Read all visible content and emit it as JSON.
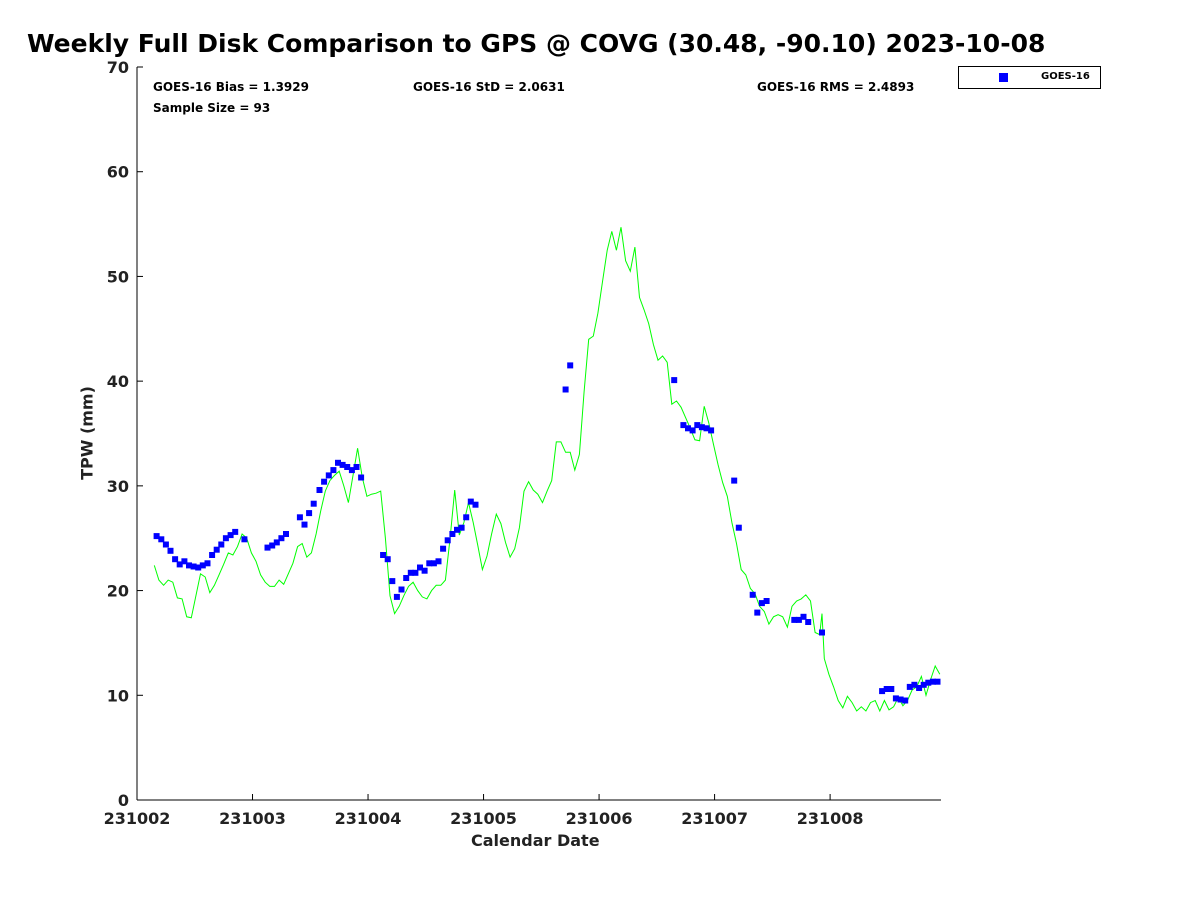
{
  "chart_data": {
    "type": "scatter",
    "title": "Weekly Full Disk Comparison to GPS @ COVG (30.48, -90.10) 2023-10-08",
    "xlabel": "Calendar Date",
    "ylabel": "TPW (mm)",
    "ylim": [
      0,
      70
    ],
    "yticks": [
      0,
      10,
      20,
      30,
      40,
      50,
      60,
      70
    ],
    "xlim": [
      0,
      6.96
    ],
    "xticks": [
      0,
      1,
      2,
      3,
      4,
      5,
      6
    ],
    "xtick_labels": [
      "231002",
      "231003",
      "231004",
      "231005",
      "231006",
      "231007",
      "231008"
    ],
    "stats": {
      "bias": "GOES-16 Bias = 1.3929",
      "std": "GOES-16 StD = 2.0631",
      "rms": "GOES-16 RMS = 2.4893",
      "sample": "Sample Size = 93"
    },
    "legend": {
      "label": "GOES-16",
      "position": "top-right",
      "color": "#0000ff"
    },
    "series": [
      {
        "name": "GOES-16",
        "kind": "scatter",
        "color": "#0000ff",
        "points": [
          [
            0.17,
            25.2
          ],
          [
            0.21,
            24.9
          ],
          [
            0.25,
            24.4
          ],
          [
            0.29,
            23.8
          ],
          [
            0.33,
            23.0
          ],
          [
            0.37,
            22.5
          ],
          [
            0.41,
            22.8
          ],
          [
            0.45,
            22.4
          ],
          [
            0.49,
            22.3
          ],
          [
            0.53,
            22.2
          ],
          [
            0.57,
            22.4
          ],
          [
            0.61,
            22.6
          ],
          [
            0.65,
            23.4
          ],
          [
            0.69,
            23.9
          ],
          [
            0.73,
            24.4
          ],
          [
            0.77,
            25.0
          ],
          [
            0.81,
            25.3
          ],
          [
            0.85,
            25.6
          ],
          [
            0.93,
            24.9
          ],
          [
            1.13,
            24.1
          ],
          [
            1.17,
            24.3
          ],
          [
            1.21,
            24.6
          ],
          [
            1.25,
            25.0
          ],
          [
            1.29,
            25.4
          ],
          [
            1.41,
            27.0
          ],
          [
            1.45,
            26.3
          ],
          [
            1.49,
            27.4
          ],
          [
            1.53,
            28.3
          ],
          [
            1.58,
            29.6
          ],
          [
            1.62,
            30.4
          ],
          [
            1.66,
            31.0
          ],
          [
            1.7,
            31.5
          ],
          [
            1.74,
            32.2
          ],
          [
            1.78,
            32.0
          ],
          [
            1.82,
            31.8
          ],
          [
            1.86,
            31.5
          ],
          [
            1.9,
            31.8
          ],
          [
            1.94,
            30.8
          ],
          [
            2.13,
            23.4
          ],
          [
            2.17,
            23.0
          ],
          [
            2.21,
            20.9
          ],
          [
            2.25,
            19.4
          ],
          [
            2.29,
            20.1
          ],
          [
            2.33,
            21.2
          ],
          [
            2.37,
            21.7
          ],
          [
            2.41,
            21.7
          ],
          [
            2.45,
            22.2
          ],
          [
            2.49,
            21.9
          ],
          [
            2.53,
            22.6
          ],
          [
            2.57,
            22.6
          ],
          [
            2.61,
            22.8
          ],
          [
            2.65,
            24.0
          ],
          [
            2.69,
            24.8
          ],
          [
            2.73,
            25.4
          ],
          [
            2.77,
            25.8
          ],
          [
            2.81,
            26.0
          ],
          [
            2.85,
            27.0
          ],
          [
            2.89,
            28.5
          ],
          [
            2.93,
            28.2
          ],
          [
            3.71,
            39.2
          ],
          [
            3.75,
            41.5
          ],
          [
            4.65,
            40.1
          ],
          [
            4.73,
            35.8
          ],
          [
            4.77,
            35.5
          ],
          [
            4.81,
            35.3
          ],
          [
            4.85,
            35.8
          ],
          [
            4.89,
            35.6
          ],
          [
            4.93,
            35.5
          ],
          [
            4.97,
            35.3
          ],
          [
            5.17,
            30.5
          ],
          [
            5.21,
            26.0
          ],
          [
            5.33,
            19.6
          ],
          [
            5.37,
            17.9
          ],
          [
            5.41,
            18.8
          ],
          [
            5.45,
            19.0
          ],
          [
            5.69,
            17.2
          ],
          [
            5.73,
            17.2
          ],
          [
            5.77,
            17.5
          ],
          [
            5.81,
            17.0
          ],
          [
            5.93,
            16.0
          ],
          [
            6.45,
            10.4
          ],
          [
            6.49,
            10.6
          ],
          [
            6.53,
            10.6
          ],
          [
            6.57,
            9.7
          ],
          [
            6.61,
            9.6
          ],
          [
            6.65,
            9.5
          ],
          [
            6.69,
            10.8
          ],
          [
            6.73,
            11.0
          ],
          [
            6.77,
            10.7
          ],
          [
            6.81,
            11.0
          ],
          [
            6.85,
            11.2
          ],
          [
            6.89,
            11.3
          ],
          [
            6.93,
            11.3
          ]
        ]
      },
      {
        "name": "GPS",
        "kind": "line",
        "color": "#00ff00",
        "points": [
          [
            0.15,
            22.4
          ],
          [
            0.19,
            21.0
          ],
          [
            0.23,
            20.5
          ],
          [
            0.27,
            21.0
          ],
          [
            0.31,
            20.8
          ],
          [
            0.35,
            19.3
          ],
          [
            0.39,
            19.2
          ],
          [
            0.43,
            17.5
          ],
          [
            0.47,
            17.4
          ],
          [
            0.51,
            19.5
          ],
          [
            0.55,
            21.6
          ],
          [
            0.59,
            21.3
          ],
          [
            0.63,
            19.8
          ],
          [
            0.67,
            20.5
          ],
          [
            0.71,
            21.5
          ],
          [
            0.75,
            22.5
          ],
          [
            0.79,
            23.6
          ],
          [
            0.83,
            23.4
          ],
          [
            0.87,
            24.2
          ],
          [
            0.91,
            25.4
          ],
          [
            0.95,
            25.0
          ],
          [
            0.99,
            23.6
          ],
          [
            1.03,
            22.8
          ],
          [
            1.07,
            21.5
          ],
          [
            1.11,
            20.8
          ],
          [
            1.15,
            20.4
          ],
          [
            1.19,
            20.4
          ],
          [
            1.23,
            21.0
          ],
          [
            1.27,
            20.6
          ],
          [
            1.31,
            21.6
          ],
          [
            1.35,
            22.6
          ],
          [
            1.39,
            24.2
          ],
          [
            1.43,
            24.5
          ],
          [
            1.47,
            23.2
          ],
          [
            1.51,
            23.6
          ],
          [
            1.55,
            25.4
          ],
          [
            1.59,
            27.6
          ],
          [
            1.63,
            29.5
          ],
          [
            1.67,
            30.5
          ],
          [
            1.71,
            31.0
          ],
          [
            1.75,
            31.4
          ],
          [
            1.79,
            30.0
          ],
          [
            1.83,
            28.4
          ],
          [
            1.87,
            31.0
          ],
          [
            1.91,
            33.6
          ],
          [
            1.95,
            30.8
          ],
          [
            1.99,
            29.0
          ],
          [
            2.03,
            29.2
          ],
          [
            2.07,
            29.3
          ],
          [
            2.11,
            29.5
          ],
          [
            2.15,
            25.0
          ],
          [
            2.19,
            19.5
          ],
          [
            2.23,
            17.8
          ],
          [
            2.27,
            18.5
          ],
          [
            2.31,
            19.5
          ],
          [
            2.35,
            20.4
          ],
          [
            2.39,
            20.8
          ],
          [
            2.43,
            20.0
          ],
          [
            2.47,
            19.4
          ],
          [
            2.51,
            19.2
          ],
          [
            2.55,
            20.0
          ],
          [
            2.59,
            20.5
          ],
          [
            2.63,
            20.5
          ],
          [
            2.67,
            21.0
          ],
          [
            2.71,
            25.0
          ],
          [
            2.75,
            29.6
          ],
          [
            2.79,
            25.3
          ],
          [
            2.83,
            26.5
          ],
          [
            2.87,
            28.4
          ],
          [
            2.91,
            26.5
          ],
          [
            2.95,
            24.3
          ],
          [
            2.99,
            22.0
          ],
          [
            3.03,
            23.3
          ],
          [
            3.07,
            25.4
          ],
          [
            3.11,
            27.3
          ],
          [
            3.15,
            26.4
          ],
          [
            3.19,
            24.6
          ],
          [
            3.23,
            23.2
          ],
          [
            3.27,
            24.0
          ],
          [
            3.31,
            26.0
          ],
          [
            3.35,
            29.5
          ],
          [
            3.39,
            30.4
          ],
          [
            3.43,
            29.6
          ],
          [
            3.47,
            29.2
          ],
          [
            3.51,
            28.4
          ],
          [
            3.55,
            29.5
          ],
          [
            3.59,
            30.5
          ],
          [
            3.63,
            34.2
          ],
          [
            3.67,
            34.2
          ],
          [
            3.71,
            33.2
          ],
          [
            3.75,
            33.2
          ],
          [
            3.79,
            31.5
          ],
          [
            3.83,
            33.0
          ],
          [
            3.87,
            39.0
          ],
          [
            3.91,
            44.0
          ],
          [
            3.95,
            44.3
          ],
          [
            3.99,
            46.5
          ],
          [
            4.03,
            49.5
          ],
          [
            4.07,
            52.5
          ],
          [
            4.11,
            54.3
          ],
          [
            4.15,
            52.5
          ],
          [
            4.19,
            54.7
          ],
          [
            4.23,
            51.5
          ],
          [
            4.27,
            50.5
          ],
          [
            4.31,
            52.8
          ],
          [
            4.35,
            48.0
          ],
          [
            4.39,
            46.8
          ],
          [
            4.43,
            45.5
          ],
          [
            4.47,
            43.5
          ],
          [
            4.51,
            42.0
          ],
          [
            4.55,
            42.4
          ],
          [
            4.59,
            41.8
          ],
          [
            4.63,
            37.8
          ],
          [
            4.67,
            38.1
          ],
          [
            4.71,
            37.5
          ],
          [
            4.75,
            36.5
          ],
          [
            4.79,
            35.5
          ],
          [
            4.83,
            34.4
          ],
          [
            4.87,
            34.3
          ],
          [
            4.91,
            37.6
          ],
          [
            4.95,
            36.0
          ],
          [
            4.99,
            34.0
          ],
          [
            5.03,
            32.0
          ],
          [
            5.07,
            30.3
          ],
          [
            5.11,
            29.0
          ],
          [
            5.15,
            26.5
          ],
          [
            5.19,
            24.5
          ],
          [
            5.23,
            22.0
          ],
          [
            5.27,
            21.5
          ],
          [
            5.31,
            20.2
          ],
          [
            5.35,
            19.7
          ],
          [
            5.39,
            18.5
          ],
          [
            5.43,
            18.0
          ],
          [
            5.47,
            16.8
          ],
          [
            5.51,
            17.5
          ],
          [
            5.55,
            17.7
          ],
          [
            5.59,
            17.5
          ],
          [
            5.63,
            16.5
          ],
          [
            5.67,
            18.5
          ],
          [
            5.71,
            19.0
          ],
          [
            5.75,
            19.2
          ],
          [
            5.79,
            19.6
          ],
          [
            5.83,
            19.0
          ],
          [
            5.87,
            16.0
          ],
          [
            5.91,
            15.8
          ],
          [
            5.93,
            17.8
          ],
          [
            5.95,
            13.5
          ],
          [
            5.99,
            12.0
          ],
          [
            6.03,
            10.8
          ],
          [
            6.07,
            9.5
          ],
          [
            6.11,
            8.8
          ],
          [
            6.15,
            9.9
          ],
          [
            6.19,
            9.3
          ],
          [
            6.23,
            8.5
          ],
          [
            6.27,
            8.9
          ],
          [
            6.31,
            8.5
          ],
          [
            6.35,
            9.3
          ],
          [
            6.39,
            9.5
          ],
          [
            6.43,
            8.5
          ],
          [
            6.47,
            9.5
          ],
          [
            6.51,
            8.6
          ],
          [
            6.55,
            8.9
          ],
          [
            6.59,
            9.8
          ],
          [
            6.63,
            9.0
          ],
          [
            6.67,
            9.5
          ],
          [
            6.71,
            10.5
          ],
          [
            6.75,
            10.8
          ],
          [
            6.79,
            11.8
          ],
          [
            6.83,
            10.0
          ],
          [
            6.87,
            11.5
          ],
          [
            6.91,
            12.8
          ],
          [
            6.95,
            12.0
          ]
        ]
      }
    ]
  }
}
